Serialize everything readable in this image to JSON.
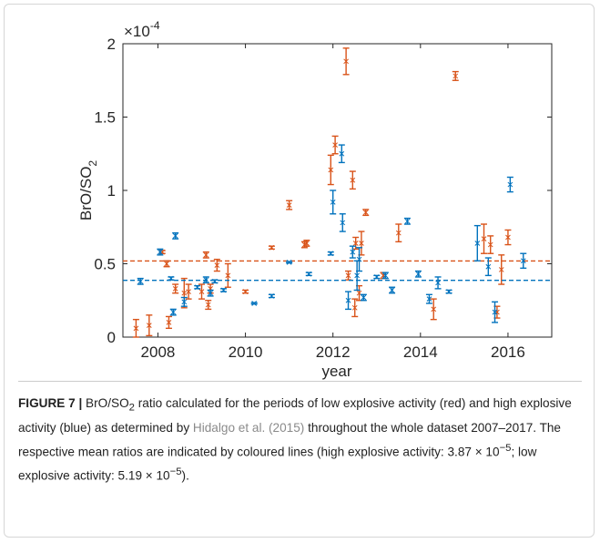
{
  "chart_data": {
    "type": "errorbar",
    "y_multiplier": "×10",
    "y_multiplier_exp": "-4",
    "ylabel": "BrO/SO",
    "ylabel_sub": "2",
    "xlabel": "year",
    "xlim": [
      2007.2,
      2017
    ],
    "ylim": [
      0,
      2
    ],
    "xticks": [
      2008,
      2010,
      2012,
      2014,
      2016
    ],
    "yticks": [
      0,
      0.5,
      1,
      1.5,
      2
    ],
    "series": [
      {
        "color": "#d95319",
        "mean": 0.519,
        "x": [
          2007.5,
          2007.8,
          2008.1,
          2008.2,
          2008.25,
          2008.4,
          2008.6,
          2008.7,
          2009.0,
          2009.1,
          2009.15,
          2009.2,
          2009.35,
          2009.6,
          2010.0,
          2010.6,
          2011.0,
          2011.35,
          2011.4,
          2011.95,
          2012.05,
          2012.3,
          2012.35,
          2012.45,
          2012.5,
          2012.52,
          2012.6,
          2012.65,
          2012.75,
          2013.15,
          2013.5,
          2014.3,
          2014.8,
          2015.45,
          2015.6,
          2015.75,
          2015.85,
          2016.0
        ],
        "values": [
          0.06,
          0.08,
          0.58,
          0.5,
          0.1,
          0.33,
          0.3,
          0.31,
          0.31,
          0.56,
          0.22,
          0.33,
          0.49,
          0.42,
          0.31,
          0.61,
          0.9,
          0.63,
          0.64,
          1.14,
          1.31,
          1.88,
          0.42,
          1.07,
          0.2,
          0.64,
          0.3,
          0.64,
          0.85,
          0.42,
          0.71,
          0.19,
          1.78,
          0.67,
          0.63,
          0.17,
          0.46,
          0.68
        ],
        "errors": [
          0.06,
          0.07,
          0.01,
          0.02,
          0.04,
          0.03,
          0.1,
          0.05,
          0.05,
          0.02,
          0.03,
          0.03,
          0.04,
          0.08,
          0.01,
          0.01,
          0.03,
          0.02,
          0.02,
          0.1,
          0.06,
          0.09,
          0.03,
          0.06,
          0.06,
          0.04,
          0.05,
          0.08,
          0.02,
          0.02,
          0.06,
          0.07,
          0.03,
          0.1,
          0.06,
          0.04,
          0.1,
          0.05
        ]
      },
      {
        "color": "#0072bd",
        "mean": 0.387,
        "x": [
          2007.6,
          2008.05,
          2008.3,
          2008.35,
          2008.4,
          2008.6,
          2008.9,
          2009.1,
          2009.2,
          2009.3,
          2009.5,
          2010.2,
          2010.6,
          2011.0,
          2011.45,
          2011.95,
          2012.0,
          2012.2,
          2012.22,
          2012.35,
          2012.45,
          2012.55,
          2012.6,
          2012.7,
          2013.0,
          2013.2,
          2013.35,
          2013.7,
          2013.95,
          2014.2,
          2014.4,
          2014.65,
          2015.3,
          2015.55,
          2015.7,
          2016.05,
          2016.35
        ],
        "values": [
          0.38,
          0.58,
          0.4,
          0.17,
          0.69,
          0.24,
          0.34,
          0.39,
          0.3,
          0.38,
          0.32,
          0.23,
          0.28,
          0.51,
          0.43,
          0.57,
          0.92,
          1.25,
          0.78,
          0.25,
          0.58,
          0.42,
          0.53,
          0.27,
          0.41,
          0.42,
          0.32,
          0.79,
          0.43,
          0.26,
          0.37,
          0.31,
          0.64,
          0.48,
          0.17,
          1.04,
          0.52
        ],
        "errors": [
          0.02,
          0.02,
          0.01,
          0.02,
          0.02,
          0.03,
          0.01,
          0.02,
          0.02,
          0.01,
          0.01,
          0.005,
          0.01,
          0.005,
          0.01,
          0.01,
          0.08,
          0.06,
          0.06,
          0.06,
          0.04,
          0.1,
          0.08,
          0.02,
          0.01,
          0.02,
          0.02,
          0.02,
          0.02,
          0.03,
          0.04,
          0.01,
          0.12,
          0.06,
          0.07,
          0.05,
          0.05
        ]
      }
    ]
  },
  "caption": [
    "FIGURE 7 |",
    " BrO/SO",
    "2",
    " ratio calculated for the periods of low explosive activity (red) and high explosive activity (blue) as determined by ",
    "Hidalgo et al. (2015)",
    " throughout the whole dataset 2007–2017. The respective mean ratios are indicated by coloured lines (high explosive activity: 3.87 × 10",
    "−5",
    "; low explosive activity: 5.19 × 10",
    "−5",
    ")."
  ]
}
